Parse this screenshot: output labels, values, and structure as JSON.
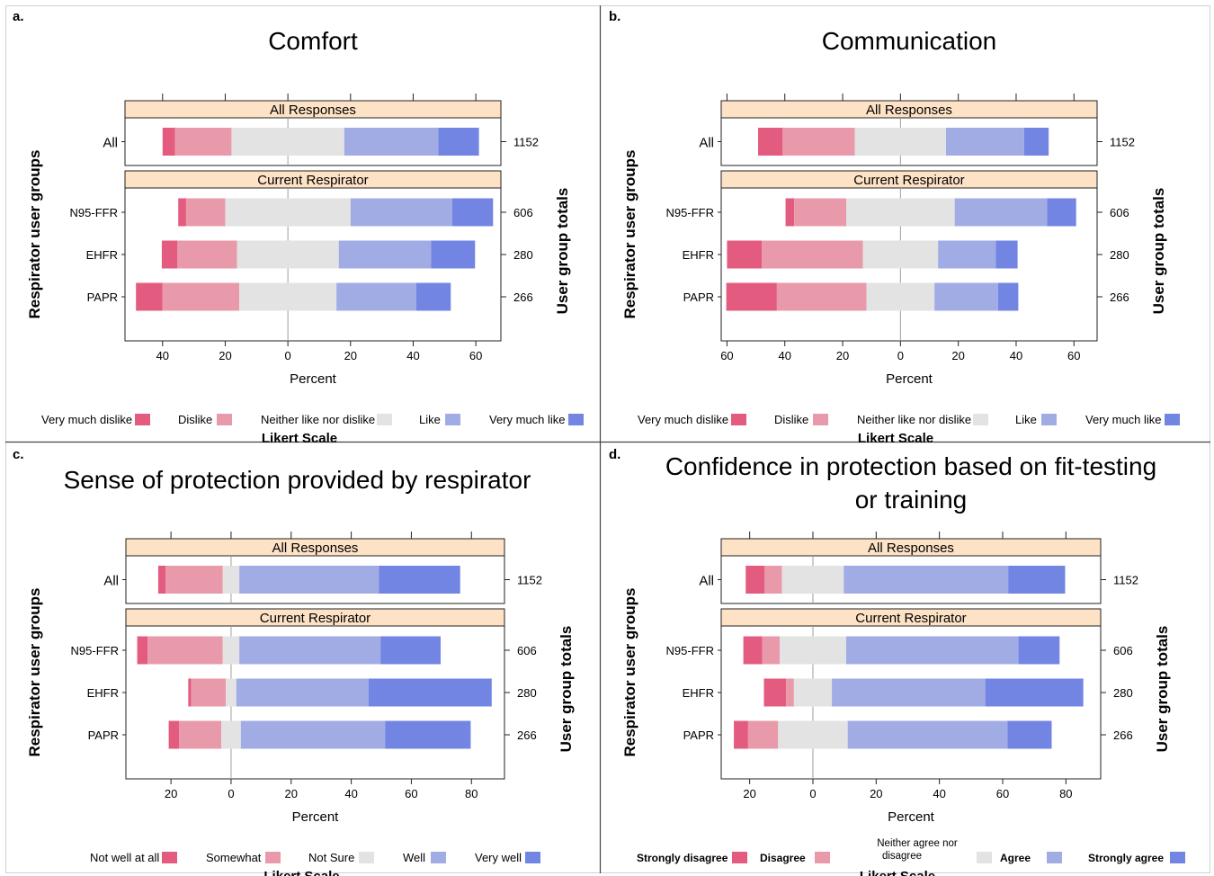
{
  "colors": {
    "c1": "#E35B7F",
    "c2": "#E99AAA",
    "c3": "#E3E3E3",
    "c4": "#A2ACE4",
    "c5": "#7285E3",
    "strip": "#FDE2C5",
    "zero_line": "#9e9e9e"
  },
  "shared": {
    "strip_all": "All Responses",
    "strip_current": "Current Respirator",
    "all_label": "All",
    "groups": [
      "N95-FFR",
      "EHFR",
      "PAPR"
    ],
    "all_total": "1152",
    "totals": [
      "606",
      "280",
      "266"
    ],
    "xlabel": "Percent",
    "ylabel_left": "Respirator user groups",
    "ylabel_right": "User group totals",
    "likert_title": "Likert Scale"
  },
  "chart_data": [
    {
      "panel_letter": "a.",
      "type": "bar",
      "title_lines": [
        "Comfort"
      ],
      "xlim": [
        -52,
        68
      ],
      "xticks": [
        -40,
        -20,
        0,
        20,
        40,
        60
      ],
      "xtick_labels": [
        "40",
        "20",
        "0",
        "20",
        "40",
        "60"
      ],
      "legend": [
        "Very much dislike",
        "Dislike",
        "Neither like nor dislike",
        "Like",
        "Very much like"
      ],
      "rows": {
        "All": [
          4,
          18,
          36,
          30,
          13
        ],
        "N95-FFR": [
          2.5,
          12.5,
          40,
          32.5,
          13
        ],
        "EHFR": [
          5,
          19,
          32.5,
          29.5,
          14
        ],
        "PAPR": [
          8.5,
          24.5,
          31,
          25.5,
          11
        ]
      }
    },
    {
      "panel_letter": "b.",
      "type": "bar",
      "title_lines": [
        "Communication"
      ],
      "xlim": [
        -62,
        68
      ],
      "xticks": [
        -60,
        -40,
        -20,
        0,
        20,
        40,
        60
      ],
      "xtick_labels": [
        "60",
        "40",
        "20",
        "0",
        "20",
        "40",
        "60"
      ],
      "legend": [
        "Very much dislike",
        "Dislike",
        "Neither like nor dislike",
        "Like",
        "Very much like"
      ],
      "rows": {
        "All": [
          8.5,
          25,
          31.5,
          27,
          8.5
        ],
        "N95-FFR": [
          3,
          18,
          37.5,
          32,
          10
        ],
        "EHFR": [
          12,
          35,
          26,
          20,
          7.5
        ],
        "PAPR": [
          17.5,
          31,
          23.5,
          22,
          7
        ]
      }
    },
    {
      "panel_letter": "c.",
      "type": "bar",
      "title_lines": [
        "Sense of protection provided by respirator"
      ],
      "xlim": [
        -35,
        91
      ],
      "xticks": [
        -20,
        0,
        20,
        40,
        60,
        80
      ],
      "xtick_labels": [
        "20",
        "0",
        "20",
        "40",
        "60",
        "80"
      ],
      "legend": [
        "Not well at all",
        "Somewhat",
        "Not Sure",
        "Well",
        "Very well"
      ],
      "rows": {
        "All": [
          2.5,
          19,
          5.5,
          46.5,
          27
        ],
        "N95-FFR": [
          3.5,
          25,
          5.5,
          47,
          20
        ],
        "EHFR": [
          1,
          11.5,
          3.5,
          44,
          41
        ],
        "PAPR": [
          3.5,
          14,
          6.5,
          48,
          28.5
        ]
      }
    },
    {
      "panel_letter": "d.",
      "type": "bar",
      "title_lines": [
        "Confidence in protection based on fit-testing",
        "or training"
      ],
      "xlim": [
        -29,
        91
      ],
      "xticks": [
        -20,
        0,
        20,
        40,
        60,
        80
      ],
      "xtick_labels": [
        "20",
        "0",
        "20",
        "40",
        "60",
        "80"
      ],
      "legend": [
        "Strongly disagree",
        "Disagree",
        "Neither agree nor disagree",
        "Agree",
        "Strongly agree"
      ],
      "rows": {
        "All": [
          6,
          5.5,
          19.5,
          52,
          18
        ],
        "N95-FFR": [
          6,
          5.5,
          21,
          54.5,
          13
        ],
        "EHFR": [
          7,
          2.5,
          12,
          48.5,
          31
        ],
        "PAPR": [
          4.5,
          9.5,
          22,
          50.5,
          14
        ]
      }
    }
  ]
}
